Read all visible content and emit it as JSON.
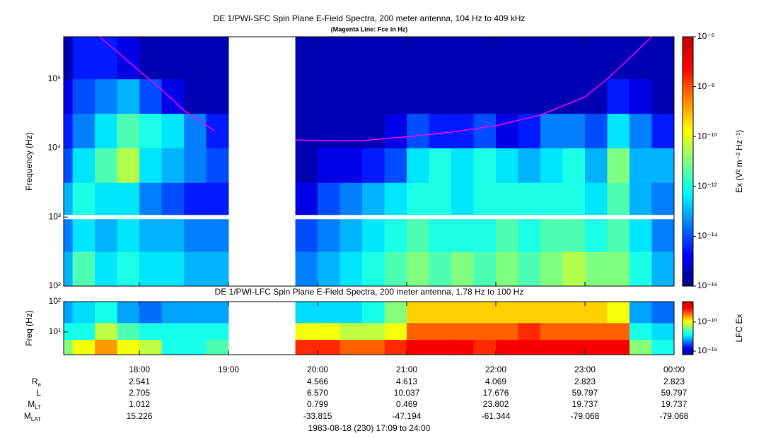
{
  "chart_data": [
    {
      "type": "heatmap",
      "title": "DE 1/PWI-SFC  Spin Plane E-Field Spectra, 200 meter antenna, 104 Hz to 409 kHz",
      "subtitle": "(Magenta Line: Fce in Hz)",
      "ylabel": "Frequency (Hz)",
      "colorbar_label": "Ex (V² m⁻² Hz⁻¹)",
      "log_y": true,
      "xlim": [
        17.15,
        24
      ],
      "xticks": [
        {
          "value": 18,
          "label": "18:00"
        },
        {
          "value": 19,
          "label": "19:00"
        },
        {
          "value": 20,
          "label": "20:00"
        },
        {
          "value": 21,
          "label": "21:00"
        },
        {
          "value": 22,
          "label": "22:00"
        },
        {
          "value": 23,
          "label": "23:00"
        },
        {
          "value": 24,
          "label": "00:00"
        }
      ],
      "ylim": [
        100,
        409000
      ],
      "yticks": [
        {
          "value": 100,
          "label": "10²"
        },
        {
          "value": 1000,
          "label": "10³"
        },
        {
          "value": 10000,
          "label": "10⁴"
        },
        {
          "value": 100000,
          "label": "10⁵"
        }
      ],
      "clim": [
        1e-16,
        1e-06
      ],
      "cticks": [
        {
          "value": 1e-16,
          "label": "10⁻¹⁶"
        },
        {
          "value": 1e-14,
          "label": "10⁻¹⁴"
        },
        {
          "value": 1e-12,
          "label": "10⁻¹²"
        },
        {
          "value": 1e-10,
          "label": "10⁻¹⁰"
        },
        {
          "value": 1e-08,
          "label": "10⁻⁸"
        },
        {
          "value": 1e-06,
          "label": "10⁻⁶"
        }
      ],
      "x_edges": [
        17.15,
        17.25,
        17.5,
        17.75,
        18,
        18.25,
        18.5,
        18.75,
        19,
        19.25,
        19.5,
        19.75,
        20,
        20.25,
        20.5,
        20.75,
        21,
        21.25,
        21.5,
        21.75,
        22,
        22.25,
        22.5,
        22.75,
        23,
        23.25,
        23.5,
        23.75,
        24
      ],
      "y_edges": [
        100,
        316,
        1000,
        3162,
        10000,
        31623,
        100000,
        409000
      ],
      "z": [
        [
          1e-13,
          3.2e-14,
          1e-13,
          1e-14,
          3.2e-15,
          1e-15,
          3.2e-16
        ],
        [
          3.2e-12,
          3.2e-13,
          1e-12,
          3.2e-13,
          3.2e-14,
          1e-14,
          3.2e-15
        ],
        [
          3.2e-13,
          1e-13,
          3.2e-13,
          3.2e-12,
          3.2e-13,
          3.2e-14,
          3.2e-15
        ],
        [
          1e-12,
          3.2e-13,
          3.2e-13,
          3.2e-11,
          3.2e-12,
          1e-13,
          1e-15
        ],
        [
          3.2e-13,
          1e-13,
          3.2e-14,
          3.2e-13,
          1e-12,
          1e-14,
          3.2e-16
        ],
        [
          3.2e-13,
          1e-13,
          1e-14,
          1e-13,
          3.2e-13,
          1e-15,
          3.2e-16
        ],
        [
          1e-13,
          3.2e-14,
          3.2e-15,
          3.2e-14,
          3.2e-14,
          3.2e-16,
          3.2e-16
        ],
        [
          1e-13,
          3.2e-14,
          3.2e-15,
          1e-14,
          3.2e-15,
          3.2e-16,
          3.2e-16
        ],
        null,
        null,
        null,
        [
          3.2e-14,
          1e-14,
          1e-15,
          3.2e-16,
          3.2e-16,
          3.2e-16,
          3.2e-16
        ],
        [
          1e-13,
          3.2e-14,
          1e-14,
          1e-15,
          3.2e-16,
          3.2e-16,
          3.2e-16
        ],
        [
          3.2e-13,
          1e-13,
          3.2e-14,
          1e-15,
          3.2e-16,
          3.2e-16,
          3.2e-16
        ],
        [
          1e-12,
          3.2e-13,
          1e-13,
          3.2e-15,
          3.2e-16,
          3.2e-16,
          3.2e-16
        ],
        [
          3.2e-12,
          1e-12,
          3.2e-13,
          1e-14,
          1e-15,
          3.2e-16,
          3.2e-16
        ],
        [
          1e-11,
          3.2e-12,
          1e-12,
          3.2e-13,
          1e-14,
          3.2e-16,
          3.2e-16
        ],
        [
          3.2e-12,
          1e-12,
          1e-12,
          1e-12,
          3.2e-15,
          3.2e-16,
          3.2e-16
        ],
        [
          1e-11,
          1e-12,
          3.2e-13,
          3.2e-13,
          3.2e-15,
          3.2e-16,
          3.2e-16
        ],
        [
          3.2e-12,
          1e-12,
          1e-12,
          1e-12,
          1e-14,
          3.2e-16,
          3.2e-16
        ],
        [
          1e-11,
          3.2e-12,
          1e-12,
          3.2e-13,
          1e-15,
          3.2e-16,
          3.2e-16
        ],
        [
          3.2e-12,
          1e-12,
          1e-12,
          1e-13,
          3.2e-15,
          3.2e-16,
          3.2e-16
        ],
        [
          1e-11,
          3.2e-12,
          1e-12,
          3.2e-13,
          3.2e-14,
          3.2e-16,
          3.2e-16
        ],
        [
          3.2e-11,
          3.2e-12,
          1e-12,
          1e-12,
          3.2e-14,
          3.2e-16,
          3.2e-16
        ],
        [
          1e-11,
          1e-12,
          3.2e-13,
          1e-13,
          1e-14,
          3.2e-16,
          3.2e-16
        ],
        [
          1e-11,
          3.2e-12,
          3.2e-12,
          1e-11,
          3.2e-13,
          3.2e-15,
          3.2e-16
        ],
        [
          1e-12,
          3.2e-13,
          1e-13,
          1e-13,
          3.2e-14,
          1e-15,
          3.2e-16
        ],
        [
          1e-13,
          3.2e-14,
          3.2e-14,
          1e-13,
          3.2e-15,
          3.2e-16,
          3.2e-16
        ]
      ],
      "fce": {
        "color": "#ff00ff",
        "x": [
          17.55,
          17.75,
          18,
          18.25,
          18.5,
          18.85,
          19.3,
          19.75,
          20.5,
          21,
          21.5,
          22,
          22.5,
          23,
          23.25,
          23.5,
          23.75
        ],
        "y": [
          409000,
          250000,
          130000,
          70000,
          35000,
          17500,
          null,
          13000,
          12800,
          14500,
          17000,
          21000,
          30000,
          55000,
          100000,
          200000,
          409000
        ]
      }
    },
    {
      "type": "heatmap",
      "title": "DE 1/PWI-LFC  Spin Plane E-Field Spectra, 200 meter antenna, 1.78 Hz to 100 Hz",
      "ylabel": "Freq (Hz)",
      "colorbar_label": "LFC Ex",
      "log_y": true,
      "xlim": [
        17.15,
        24
      ],
      "ylim": [
        1.78,
        100
      ],
      "yticks": [
        {
          "value": 10,
          "label": "10¹"
        },
        {
          "value": 100,
          "label": "10²"
        }
      ],
      "clim": [
        2.5e-16,
        3.2e-07
      ],
      "cticks": [
        {
          "value": 1e-15,
          "label": "10⁻¹⁵"
        },
        {
          "value": 1e-10,
          "label": "10⁻¹⁰"
        }
      ],
      "x_edges": [
        17.15,
        17.25,
        17.5,
        17.75,
        18,
        18.25,
        18.5,
        18.75,
        19,
        19.25,
        19.5,
        19.75,
        20,
        20.25,
        20.5,
        20.75,
        21,
        21.25,
        21.5,
        21.75,
        22,
        22.25,
        22.5,
        22.75,
        23,
        23.25,
        23.5,
        23.75,
        24
      ],
      "y_edges": [
        1.78,
        5.6,
        20,
        100
      ],
      "z": [
        [
          1e-11,
          1e-12,
          1e-13
        ],
        [
          1e-10,
          1e-12,
          3.2e-13
        ],
        [
          1e-09,
          3.2e-11,
          1e-12
        ],
        [
          1e-10,
          3.2e-12,
          1e-13
        ],
        [
          3.2e-11,
          1e-12,
          3.2e-14
        ],
        [
          1e-12,
          1e-12,
          1e-13
        ],
        [
          1e-12,
          1e-12,
          1e-13
        ],
        [
          3.2e-12,
          1e-12,
          1e-13
        ],
        null,
        null,
        null,
        [
          1e-08,
          1e-10,
          3.2e-13
        ],
        [
          1e-08,
          1e-10,
          3.2e-13
        ],
        [
          3.2e-09,
          3.2e-11,
          3.2e-13
        ],
        [
          3.2e-09,
          3.2e-11,
          1e-12
        ],
        [
          1e-08,
          1e-10,
          1e-11
        ],
        [
          3.2e-08,
          3.2e-09,
          3.2e-10
        ],
        [
          3.2e-08,
          3.2e-09,
          3.2e-10
        ],
        [
          3.2e-08,
          3.2e-09,
          3.2e-10
        ],
        [
          1e-08,
          3.2e-09,
          3.2e-10
        ],
        [
          3.2e-08,
          3.2e-09,
          3.2e-10
        ],
        [
          3.2e-08,
          1e-08,
          3.2e-10
        ],
        [
          3.2e-08,
          3.2e-09,
          3.2e-10
        ],
        [
          3.2e-08,
          3.2e-09,
          3.2e-10
        ],
        [
          3.2e-08,
          3.2e-09,
          3.2e-10
        ],
        [
          3.2e-08,
          3.2e-09,
          1e-10
        ],
        [
          1e-11,
          1e-12,
          1e-13
        ],
        [
          1e-12,
          3.2e-13,
          3.2e-14
        ]
      ]
    }
  ],
  "ephemeris": {
    "rows": [
      {
        "label": "R",
        "sub": "e",
        "values": [
          "2.541",
          null,
          "4.566",
          "4.613",
          "4.069",
          "2.823",
          "2.823"
        ]
      },
      {
        "label": "L",
        "values": [
          "2.705",
          null,
          "6.570",
          "10.037",
          "17.676",
          "59.797",
          "59.797"
        ]
      },
      {
        "label": "M",
        "sub": "LT",
        "values": [
          "1.012",
          null,
          "0.799",
          "0.469",
          "23.802",
          "19.737",
          "19.737"
        ]
      },
      {
        "label": "M",
        "sub": "LAT",
        "values": [
          "15.226",
          null,
          "-33.815",
          "-47.194",
          "-61.344",
          "-79.068",
          "-79.068"
        ]
      }
    ]
  },
  "footer": "1983-08-18 (230) 17:09 to 24:00"
}
